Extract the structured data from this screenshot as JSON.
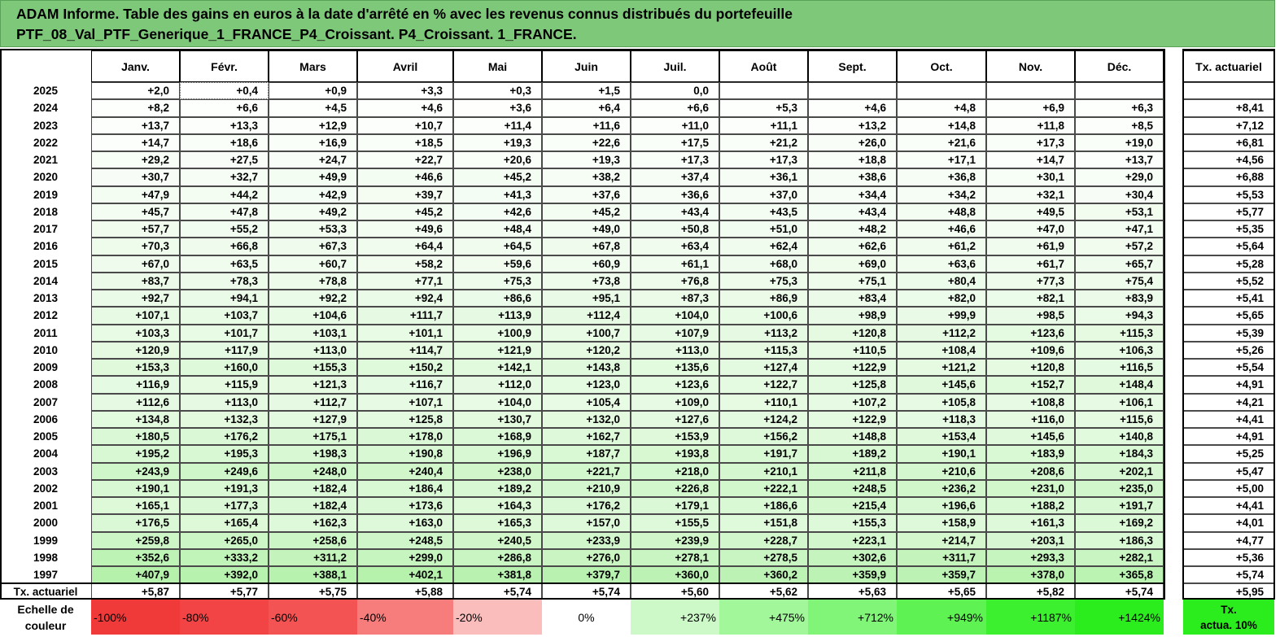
{
  "title": {
    "line1": "ADAM Informe. Table des gains en euros à la date d'arrêté en % avec les revenus connus distribués du portefeuille",
    "line2": "PTF_08_Val_PTF_Generique_1_FRANCE_P4_Croissant. P4_Croissant. 1_FRANCE."
  },
  "months": [
    "Janv.",
    "Févr.",
    "Mars",
    "Avril",
    "Mai",
    "Juin",
    "Juil.",
    "Août",
    "Sept.",
    "Oct.",
    "Nov.",
    "Déc."
  ],
  "rate_header": "Tx. actuariel",
  "rows": [
    {
      "year": "2025",
      "values": [
        "+2,0",
        "+0,4",
        "+0,9",
        "+3,3",
        "+0,3",
        "+1,5",
        "0,0",
        "",
        "",
        "",
        "",
        ""
      ],
      "rate": ""
    },
    {
      "year": "2024",
      "values": [
        "+8,2",
        "+6,6",
        "+4,5",
        "+4,6",
        "+3,6",
        "+6,4",
        "+6,6",
        "+5,3",
        "+4,6",
        "+4,8",
        "+6,9",
        "+6,3"
      ],
      "rate": "+8,41"
    },
    {
      "year": "2023",
      "values": [
        "+13,7",
        "+13,3",
        "+12,9",
        "+10,7",
        "+11,4",
        "+11,6",
        "+11,0",
        "+11,1",
        "+13,2",
        "+14,8",
        "+11,8",
        "+8,5"
      ],
      "rate": "+7,12"
    },
    {
      "year": "2022",
      "values": [
        "+14,7",
        "+18,6",
        "+16,9",
        "+18,5",
        "+19,3",
        "+22,6",
        "+17,5",
        "+21,2",
        "+26,0",
        "+21,6",
        "+17,3",
        "+19,0"
      ],
      "rate": "+6,81"
    },
    {
      "year": "2021",
      "values": [
        "+29,2",
        "+27,5",
        "+24,7",
        "+22,7",
        "+20,6",
        "+19,3",
        "+17,3",
        "+17,3",
        "+18,8",
        "+17,1",
        "+14,7",
        "+13,7"
      ],
      "rate": "+4,56"
    },
    {
      "year": "2020",
      "values": [
        "+30,7",
        "+32,7",
        "+49,9",
        "+46,6",
        "+45,2",
        "+38,2",
        "+37,4",
        "+36,1",
        "+38,6",
        "+36,8",
        "+30,1",
        "+29,0"
      ],
      "rate": "+6,88"
    },
    {
      "year": "2019",
      "values": [
        "+47,9",
        "+44,2",
        "+42,9",
        "+39,7",
        "+41,3",
        "+37,6",
        "+36,6",
        "+37,0",
        "+34,4",
        "+34,2",
        "+32,1",
        "+30,4"
      ],
      "rate": "+5,53"
    },
    {
      "year": "2018",
      "values": [
        "+45,7",
        "+47,8",
        "+49,2",
        "+45,2",
        "+42,6",
        "+45,2",
        "+43,4",
        "+43,5",
        "+43,4",
        "+48,8",
        "+49,5",
        "+53,1"
      ],
      "rate": "+5,77"
    },
    {
      "year": "2017",
      "values": [
        "+57,7",
        "+55,2",
        "+53,3",
        "+49,6",
        "+48,4",
        "+49,0",
        "+50,8",
        "+51,0",
        "+48,2",
        "+46,6",
        "+47,0",
        "+47,1"
      ],
      "rate": "+5,35"
    },
    {
      "year": "2016",
      "values": [
        "+70,3",
        "+66,8",
        "+67,3",
        "+64,4",
        "+64,5",
        "+67,8",
        "+63,4",
        "+62,4",
        "+62,6",
        "+61,2",
        "+61,9",
        "+57,2"
      ],
      "rate": "+5,64"
    },
    {
      "year": "2015",
      "values": [
        "+67,0",
        "+63,5",
        "+60,7",
        "+58,2",
        "+59,6",
        "+60,9",
        "+61,1",
        "+68,0",
        "+69,0",
        "+63,6",
        "+61,7",
        "+65,7"
      ],
      "rate": "+5,28"
    },
    {
      "year": "2014",
      "values": [
        "+83,7",
        "+78,3",
        "+78,8",
        "+77,1",
        "+75,3",
        "+73,8",
        "+76,8",
        "+75,3",
        "+75,1",
        "+80,4",
        "+77,3",
        "+75,4"
      ],
      "rate": "+5,52"
    },
    {
      "year": "2013",
      "values": [
        "+92,7",
        "+94,1",
        "+92,2",
        "+92,4",
        "+86,6",
        "+95,1",
        "+87,3",
        "+86,9",
        "+83,4",
        "+82,0",
        "+82,1",
        "+83,9"
      ],
      "rate": "+5,41"
    },
    {
      "year": "2012",
      "values": [
        "+107,1",
        "+103,7",
        "+104,6",
        "+111,7",
        "+113,9",
        "+112,4",
        "+104,0",
        "+100,6",
        "+98,9",
        "+99,9",
        "+98,5",
        "+94,3"
      ],
      "rate": "+5,65"
    },
    {
      "year": "2011",
      "values": [
        "+103,3",
        "+101,7",
        "+103,1",
        "+101,1",
        "+100,9",
        "+100,7",
        "+107,9",
        "+113,2",
        "+120,8",
        "+112,2",
        "+123,6",
        "+115,3"
      ],
      "rate": "+5,39"
    },
    {
      "year": "2010",
      "values": [
        "+120,9",
        "+117,9",
        "+113,0",
        "+114,7",
        "+121,9",
        "+120,2",
        "+113,0",
        "+115,3",
        "+110,5",
        "+108,4",
        "+109,6",
        "+106,3"
      ],
      "rate": "+5,26"
    },
    {
      "year": "2009",
      "values": [
        "+153,3",
        "+160,0",
        "+155,3",
        "+150,2",
        "+142,1",
        "+143,8",
        "+135,6",
        "+127,4",
        "+122,9",
        "+121,2",
        "+120,8",
        "+116,5"
      ],
      "rate": "+5,54"
    },
    {
      "year": "2008",
      "values": [
        "+116,9",
        "+115,9",
        "+121,3",
        "+116,7",
        "+112,0",
        "+123,0",
        "+123,6",
        "+122,7",
        "+125,8",
        "+145,6",
        "+152,7",
        "+148,4"
      ],
      "rate": "+4,91"
    },
    {
      "year": "2007",
      "values": [
        "+112,6",
        "+113,0",
        "+112,7",
        "+107,1",
        "+104,0",
        "+105,4",
        "+109,0",
        "+110,1",
        "+107,2",
        "+105,8",
        "+108,8",
        "+106,1"
      ],
      "rate": "+4,21"
    },
    {
      "year": "2006",
      "values": [
        "+134,8",
        "+132,3",
        "+127,9",
        "+125,8",
        "+130,7",
        "+132,0",
        "+127,6",
        "+124,2",
        "+122,9",
        "+118,3",
        "+116,0",
        "+115,6"
      ],
      "rate": "+4,41"
    },
    {
      "year": "2005",
      "values": [
        "+180,5",
        "+176,2",
        "+175,1",
        "+178,0",
        "+168,9",
        "+162,7",
        "+153,9",
        "+156,2",
        "+148,8",
        "+153,4",
        "+145,6",
        "+140,8"
      ],
      "rate": "+4,91"
    },
    {
      "year": "2004",
      "values": [
        "+195,2",
        "+195,3",
        "+198,3",
        "+190,8",
        "+196,9",
        "+187,7",
        "+193,8",
        "+191,7",
        "+189,2",
        "+190,1",
        "+183,9",
        "+184,3"
      ],
      "rate": "+5,25"
    },
    {
      "year": "2003",
      "values": [
        "+243,9",
        "+249,6",
        "+248,0",
        "+240,4",
        "+238,0",
        "+221,7",
        "+218,0",
        "+210,1",
        "+211,8",
        "+210,6",
        "+208,6",
        "+202,1"
      ],
      "rate": "+5,47"
    },
    {
      "year": "2002",
      "values": [
        "+190,1",
        "+191,3",
        "+182,4",
        "+186,4",
        "+189,2",
        "+210,9",
        "+226,8",
        "+222,1",
        "+248,5",
        "+236,2",
        "+231,0",
        "+235,0"
      ],
      "rate": "+5,00"
    },
    {
      "year": "2001",
      "values": [
        "+165,1",
        "+177,3",
        "+182,4",
        "+173,6",
        "+164,3",
        "+176,2",
        "+179,1",
        "+186,6",
        "+215,4",
        "+196,6",
        "+188,2",
        "+191,7"
      ],
      "rate": "+4,41"
    },
    {
      "year": "2000",
      "values": [
        "+176,5",
        "+165,4",
        "+162,3",
        "+163,0",
        "+165,3",
        "+157,0",
        "+155,5",
        "+151,8",
        "+155,3",
        "+158,9",
        "+161,3",
        "+169,2"
      ],
      "rate": "+4,01"
    },
    {
      "year": "1999",
      "values": [
        "+259,8",
        "+265,0",
        "+258,6",
        "+248,5",
        "+240,5",
        "+233,9",
        "+239,9",
        "+228,7",
        "+223,1",
        "+214,7",
        "+203,1",
        "+186,3"
      ],
      "rate": "+4,77"
    },
    {
      "year": "1998",
      "values": [
        "+352,6",
        "+333,2",
        "+311,2",
        "+299,0",
        "+286,8",
        "+276,0",
        "+278,1",
        "+278,5",
        "+302,6",
        "+311,7",
        "+293,3",
        "+282,1"
      ],
      "rate": "+5,36"
    },
    {
      "year": "1997",
      "values": [
        "+407,9",
        "+392,0",
        "+388,1",
        "+402,1",
        "+381,8",
        "+379,7",
        "+360,0",
        "+360,2",
        "+359,9",
        "+359,7",
        "+378,0",
        "+365,8"
      ],
      "rate": "+5,74"
    }
  ],
  "footer": {
    "label": "Tx. actuariel",
    "values": [
      "+5,87",
      "+5,77",
      "+5,75",
      "+5,88",
      "+5,74",
      "+5,74",
      "+5,60",
      "+5,62",
      "+5,63",
      "+5,65",
      "+5,82",
      "+5,74"
    ],
    "rate": "+5,95"
  },
  "scale": {
    "label_line1": "Echelle de",
    "label_line2": "couleur",
    "items": [
      {
        "label": "-100%",
        "color": "#f03a3a",
        "align": "left"
      },
      {
        "label": "-80%",
        "color": "#f24444",
        "align": "left"
      },
      {
        "label": "-60%",
        "color": "#f45353",
        "align": "left"
      },
      {
        "label": "-40%",
        "color": "#f77c7c",
        "align": "left"
      },
      {
        "label": "-20%",
        "color": "#fbbcbc",
        "align": "left"
      },
      {
        "label": "0%",
        "color": "#ffffff",
        "align": "center"
      },
      {
        "label": "+237%",
        "color": "#ccf9c7",
        "align": "right"
      },
      {
        "label": "+475%",
        "color": "#a2f79b",
        "align": "right"
      },
      {
        "label": "+712%",
        "color": "#80f577",
        "align": "right"
      },
      {
        "label": "+949%",
        "color": "#5ef353",
        "align": "right"
      },
      {
        "label": "+1187%",
        "color": "#3cf02f",
        "align": "right"
      },
      {
        "label": "+1424%",
        "color": "#2bec1c",
        "align": "right"
      }
    ],
    "rate_line1": "Tx.",
    "rate_line2": "actua. 10%",
    "rate_color": "#2bec1c"
  },
  "colors": {
    "header_bg": "#7ec87a",
    "cell_min": "#ffffff",
    "cell_max": "#b3f1a9"
  }
}
